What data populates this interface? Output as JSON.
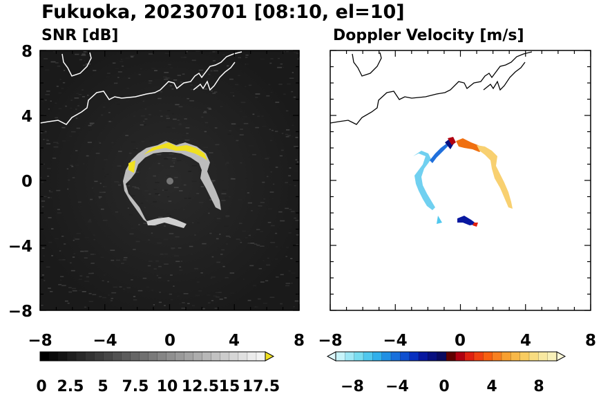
{
  "figure": {
    "title": "Fukuoka, 20230701 [08:10, el=10]"
  },
  "chart_data": [
    {
      "type": "heatmap",
      "title": "SNR [dB]",
      "xlim": [
        -8,
        8
      ],
      "ylim": [
        -8,
        8
      ],
      "xticks": [
        "−8",
        "−4",
        "0",
        "4",
        "8"
      ],
      "yticks": [
        "8",
        "4",
        "0",
        "−4",
        "−8"
      ],
      "background": "#1e1e1e",
      "colorbar": {
        "range": [
          0,
          18
        ],
        "tick_labels": [
          "0",
          "2.5",
          "5",
          "7.5",
          "10",
          "12.5",
          "15",
          "17.5"
        ],
        "extend": "max",
        "colors": [
          "#000000",
          "#0a0a0a",
          "#141414",
          "#1f1f1f",
          "#292929",
          "#333333",
          "#3d3d3d",
          "#474747",
          "#525252",
          "#5c5c5c",
          "#666666",
          "#707070",
          "#7a7a7a",
          "#858585",
          "#8f8f8f",
          "#999999",
          "#a3a3a3",
          "#adadad",
          "#b8b8b8",
          "#c2c2c2",
          "#cccccc",
          "#d6d6d6",
          "#e0e0e0",
          "#ebebeb",
          "#f2f2f2"
        ],
        "extend_color": "#f0e020"
      }
    },
    {
      "type": "heatmap",
      "title": "Doppler Velocity [m/s]",
      "xlim": [
        -8,
        8
      ],
      "ylim": [
        -8,
        8
      ],
      "xticks": [
        "−8",
        "−4",
        "0",
        "4",
        "8"
      ],
      "yticks": [
        "8",
        "4",
        "0",
        "−4",
        "−8"
      ],
      "background": "#ffffff",
      "colorbar": {
        "range": [
          -10,
          10
        ],
        "tick_labels": [
          "−8",
          "−4",
          "0",
          "4",
          "8"
        ],
        "extend": "both",
        "colors": [
          "#c8f4fa",
          "#a0e8f6",
          "#78dcf0",
          "#50c8ee",
          "#30b0ec",
          "#2090e4",
          "#1870dc",
          "#1050d0",
          "#0830c0",
          "#0818a0",
          "#081080",
          "#0a0a60",
          "#600000",
          "#b00010",
          "#e02010",
          "#f04010",
          "#f86010",
          "#f88020",
          "#f8a030",
          "#f8b848",
          "#f8cc60",
          "#f8dc80",
          "#f8e8a0",
          "#f8f0b8"
        ],
        "extend_low": "#e0f8fc",
        "extend_high": "#fcf8d8"
      }
    }
  ]
}
